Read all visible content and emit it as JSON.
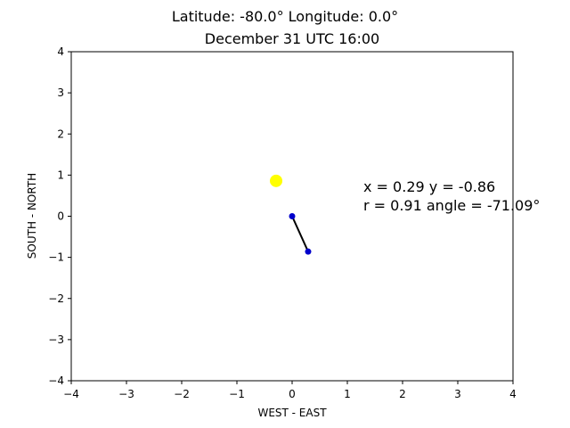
{
  "chart_data": {
    "type": "scatter",
    "title_line1": "Latitude: -80.0° Longitude: 0.0°",
    "title_line2": "December 31 UTC 16:00",
    "xlabel": "WEST - EAST",
    "ylabel": "SOUTH - NORTH",
    "xlim": [
      -4,
      4
    ],
    "ylim": [
      -4,
      4
    ],
    "xticks": [
      -4,
      -3,
      -2,
      -1,
      0,
      1,
      2,
      3,
      4
    ],
    "yticks": [
      -4,
      -3,
      -2,
      -1,
      0,
      1,
      2,
      3,
      4
    ],
    "xtick_labels": [
      "−4",
      "−3",
      "−2",
      "−1",
      "0",
      "1",
      "2",
      "3",
      "4"
    ],
    "ytick_labels": [
      "−4",
      "−3",
      "−2",
      "−1",
      "0",
      "1",
      "2",
      "3",
      "4"
    ],
    "grid": false,
    "sun": {
      "x": -0.29,
      "y": 0.86,
      "color": "#ffff00"
    },
    "vector": {
      "start": {
        "x": 0,
        "y": 0
      },
      "end": {
        "x": 0.29,
        "y": -0.86
      },
      "line_color": "#000000",
      "point_color": "#0000cc"
    },
    "annotation_line1": "x = 0.29 y = -0.86",
    "annotation_line2": "r = 0.91 angle = -71.09°"
  }
}
